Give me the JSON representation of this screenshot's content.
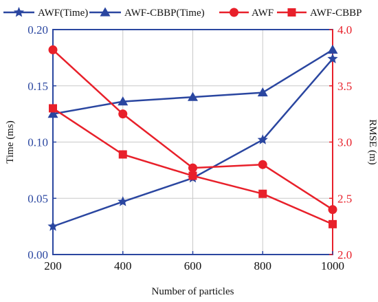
{
  "chart_data": {
    "type": "line",
    "xlabel": "Number of particles",
    "ylabel_left": "Time (ms)",
    "ylabel_right": "RMSE (m)",
    "x": [
      200,
      400,
      600,
      800,
      1000
    ],
    "xlim": [
      200,
      1000
    ],
    "ylim_left": [
      0,
      0.2
    ],
    "ylim_right": [
      2.0,
      4.0
    ],
    "x_ticks": [
      "200",
      "400",
      "600",
      "800",
      "1000"
    ],
    "y_left_ticks": [
      "0.00",
      "0.05",
      "0.10",
      "0.15",
      "0.20"
    ],
    "y_right_ticks": [
      "2.0",
      "2.5",
      "3.0",
      "3.5",
      "4.0"
    ],
    "grid": true,
    "legend_position": "top",
    "series": [
      {
        "name": "AWF(Time)",
        "axis": "left",
        "marker": "star",
        "color": "#2a46a0",
        "values": [
          0.025,
          0.047,
          0.068,
          0.102,
          0.174
        ]
      },
      {
        "name": "AWF-CBBP(Time)",
        "axis": "left",
        "marker": "triangle",
        "color": "#2a46a0",
        "values": [
          0.125,
          0.136,
          0.14,
          0.144,
          0.182
        ]
      },
      {
        "name": "AWF",
        "axis": "right",
        "marker": "circle",
        "color": "#e8202a",
        "values": [
          3.82,
          3.25,
          2.77,
          2.8,
          2.4
        ]
      },
      {
        "name": "AWF-CBBP",
        "axis": "right",
        "marker": "square",
        "color": "#e8202a",
        "values": [
          3.3,
          2.89,
          2.7,
          2.54,
          2.27
        ]
      }
    ]
  },
  "colors": {
    "left_axis": "#2a46a0",
    "right_axis": "#e8202a",
    "grid": "#c8c8c8"
  }
}
